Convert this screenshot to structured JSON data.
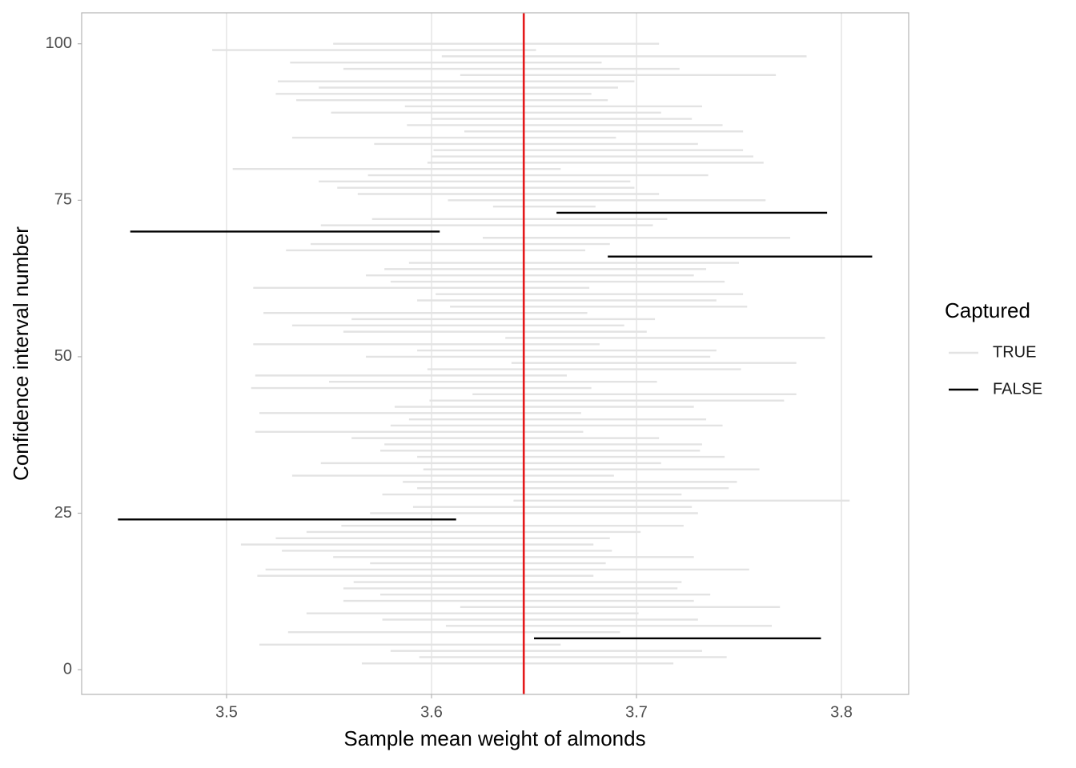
{
  "chart_data": {
    "type": "interval",
    "x_label": "Sample mean weight of almonds",
    "y_label": "Confidence interval number",
    "xlim": [
      3.4293,
      3.8328
    ],
    "ylim": [
      -3.95,
      104.95
    ],
    "xticks": [
      3.5,
      3.6,
      3.7,
      3.8
    ],
    "yticks": [
      0,
      25,
      50,
      75,
      100
    ],
    "grid": "x",
    "reference_line": {
      "x": 3.645,
      "color": "#e41a1c"
    },
    "legend_title": "Captured",
    "legend_position": "right",
    "series": [
      {
        "name": "TRUE",
        "color": "#e3e3e3",
        "y": [
          1,
          2,
          3,
          4,
          6,
          7,
          8,
          9,
          10,
          11,
          12,
          13,
          14,
          15,
          16,
          17,
          18,
          19,
          20,
          21,
          22,
          23,
          25,
          26,
          27,
          28,
          29,
          30,
          31,
          32,
          33,
          34,
          35,
          36,
          37,
          38,
          39,
          40,
          41,
          42,
          43,
          44,
          45,
          46,
          47,
          48,
          49,
          50,
          51,
          52,
          53,
          54,
          55,
          56,
          57,
          58,
          59,
          60,
          61,
          62,
          63,
          64,
          65,
          67,
          68,
          69,
          71,
          72,
          74,
          75,
          76,
          77,
          78,
          79,
          80,
          81,
          82,
          83,
          84,
          85,
          86,
          87,
          88,
          89,
          90,
          91,
          92,
          93,
          94,
          95,
          96,
          97,
          98,
          99,
          100
        ],
        "lower": [
          3.566,
          3.594,
          3.58,
          3.516,
          3.53,
          3.607,
          3.576,
          3.539,
          3.614,
          3.557,
          3.575,
          3.557,
          3.562,
          3.515,
          3.519,
          3.57,
          3.552,
          3.527,
          3.507,
          3.524,
          3.539,
          3.556,
          3.57,
          3.591,
          3.64,
          3.576,
          3.593,
          3.586,
          3.532,
          3.596,
          3.546,
          3.593,
          3.575,
          3.577,
          3.561,
          3.514,
          3.58,
          3.589,
          3.516,
          3.582,
          3.599,
          3.62,
          3.512,
          3.55,
          3.514,
          3.598,
          3.639,
          3.568,
          3.593,
          3.513,
          3.636,
          3.557,
          3.532,
          3.561,
          3.518,
          3.609,
          3.593,
          3.602,
          3.513,
          3.58,
          3.568,
          3.577,
          3.589,
          3.529,
          3.541,
          3.625,
          3.546,
          3.571,
          3.63,
          3.608,
          3.564,
          3.554,
          3.545,
          3.569,
          3.503,
          3.598,
          3.6,
          3.601,
          3.572,
          3.532,
          3.616,
          3.588,
          3.6,
          3.551,
          3.587,
          3.534,
          3.524,
          3.545,
          3.525,
          3.614,
          3.557,
          3.531,
          3.605,
          3.493,
          3.552
        ],
        "upper": [
          3.718,
          3.744,
          3.732,
          3.663,
          3.692,
          3.766,
          3.73,
          3.701,
          3.77,
          3.728,
          3.736,
          3.72,
          3.722,
          3.679,
          3.755,
          3.685,
          3.728,
          3.688,
          3.679,
          3.687,
          3.702,
          3.723,
          3.73,
          3.727,
          3.804,
          3.722,
          3.745,
          3.749,
          3.689,
          3.76,
          3.712,
          3.743,
          3.731,
          3.732,
          3.711,
          3.674,
          3.742,
          3.734,
          3.673,
          3.728,
          3.772,
          3.778,
          3.678,
          3.71,
          3.666,
          3.751,
          3.778,
          3.736,
          3.739,
          3.682,
          3.792,
          3.705,
          3.694,
          3.709,
          3.676,
          3.754,
          3.739,
          3.752,
          3.677,
          3.743,
          3.728,
          3.734,
          3.75,
          3.675,
          3.687,
          3.775,
          3.708,
          3.715,
          3.68,
          3.763,
          3.711,
          3.699,
          3.697,
          3.735,
          3.663,
          3.762,
          3.757,
          3.752,
          3.73,
          3.69,
          3.752,
          3.742,
          3.727,
          3.712,
          3.732,
          3.686,
          3.678,
          3.691,
          3.699,
          3.768,
          3.721,
          3.683,
          3.783,
          3.651,
          3.711
        ]
      },
      {
        "name": "FALSE",
        "color": "#000000",
        "y": [
          5,
          24,
          66,
          70,
          73
        ],
        "lower": [
          3.65,
          3.447,
          3.686,
          3.453,
          3.661
        ],
        "upper": [
          3.79,
          3.612,
          3.815,
          3.604,
          3.793
        ]
      }
    ]
  }
}
